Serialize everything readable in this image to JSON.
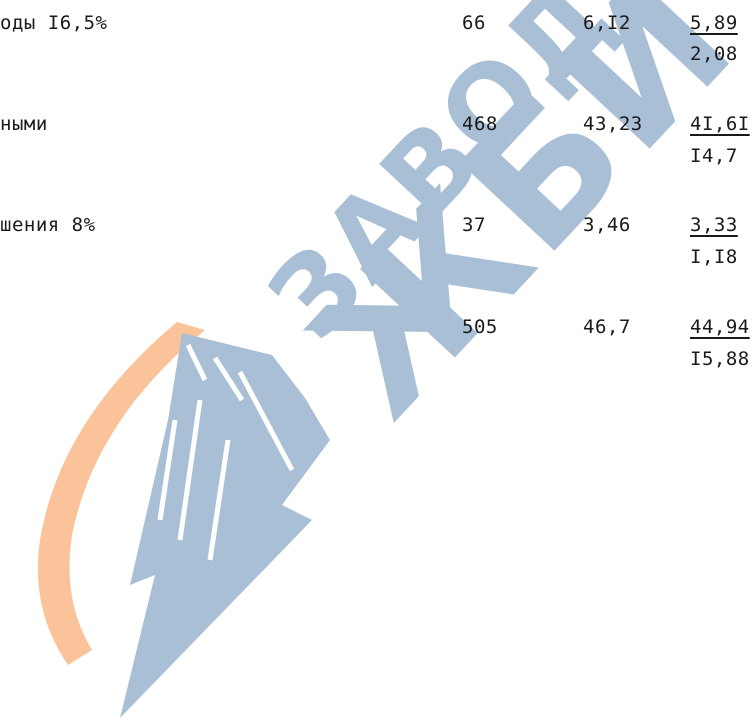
{
  "rows": [
    {
      "label": "оды I6,5%",
      "count": "66",
      "percent": "6,I2",
      "value_top": "5,89",
      "value_bottom": "2,08"
    },
    {
      "label": "ными",
      "count": "468",
      "percent": "43,23",
      "value_top": "4I,6I",
      "value_bottom": "I4,7"
    },
    {
      "label": "шения 8%",
      "count": "37",
      "percent": "3,46",
      "value_top": "3,33",
      "value_bottom": "I,I8"
    },
    {
      "label": "",
      "count": "505",
      "percent": "46,7",
      "value_top": "44,94",
      "value_bottom": "I5,88"
    }
  ],
  "watermark": {
    "line1": "ЗАВОД",
    "line2": "ЖБИ",
    "colors": {
      "blue": "#a9bfd6",
      "orange": "#fbc39a"
    }
  }
}
